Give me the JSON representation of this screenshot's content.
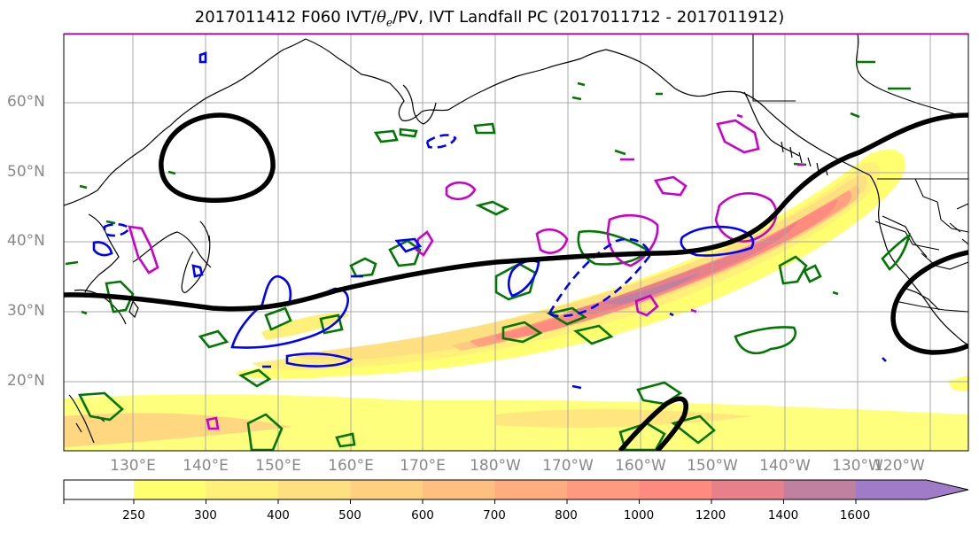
{
  "title": {
    "prefix": "2017011412 F060 IVT/",
    "theta": "θ",
    "theta_sub": "e",
    "suffix": "/PV, IVT Landfall PC (2017011712 - 2017011912)"
  },
  "map": {
    "lat_labels": [
      "60°N",
      "50°N",
      "40°N",
      "30°N",
      "20°N"
    ],
    "lon_labels": [
      "130°E",
      "140°E",
      "150°E",
      "160°E",
      "170°E",
      "180°W",
      "170°W",
      "160°W",
      "150°W",
      "140°W",
      "130°W",
      "120°W"
    ]
  },
  "colorbar": {
    "labels": [
      "250",
      "300",
      "400",
      "500",
      "600",
      "700",
      "800",
      "1000",
      "1200",
      "1400",
      "1600"
    ],
    "colors": [
      "#ffff70",
      "#fff07a",
      "#ffe080",
      "#ffd080",
      "#ffbf80",
      "#ffad80",
      "#ff9a80",
      "#ff8a80",
      "#e8808c",
      "#c080a0",
      "#a07cc8"
    ]
  },
  "colors": {
    "theta_e_warm": "#cc00cc",
    "theta_e_cold": "#0000ff",
    "pv": "#007700",
    "pc_contour": "#000000"
  }
}
